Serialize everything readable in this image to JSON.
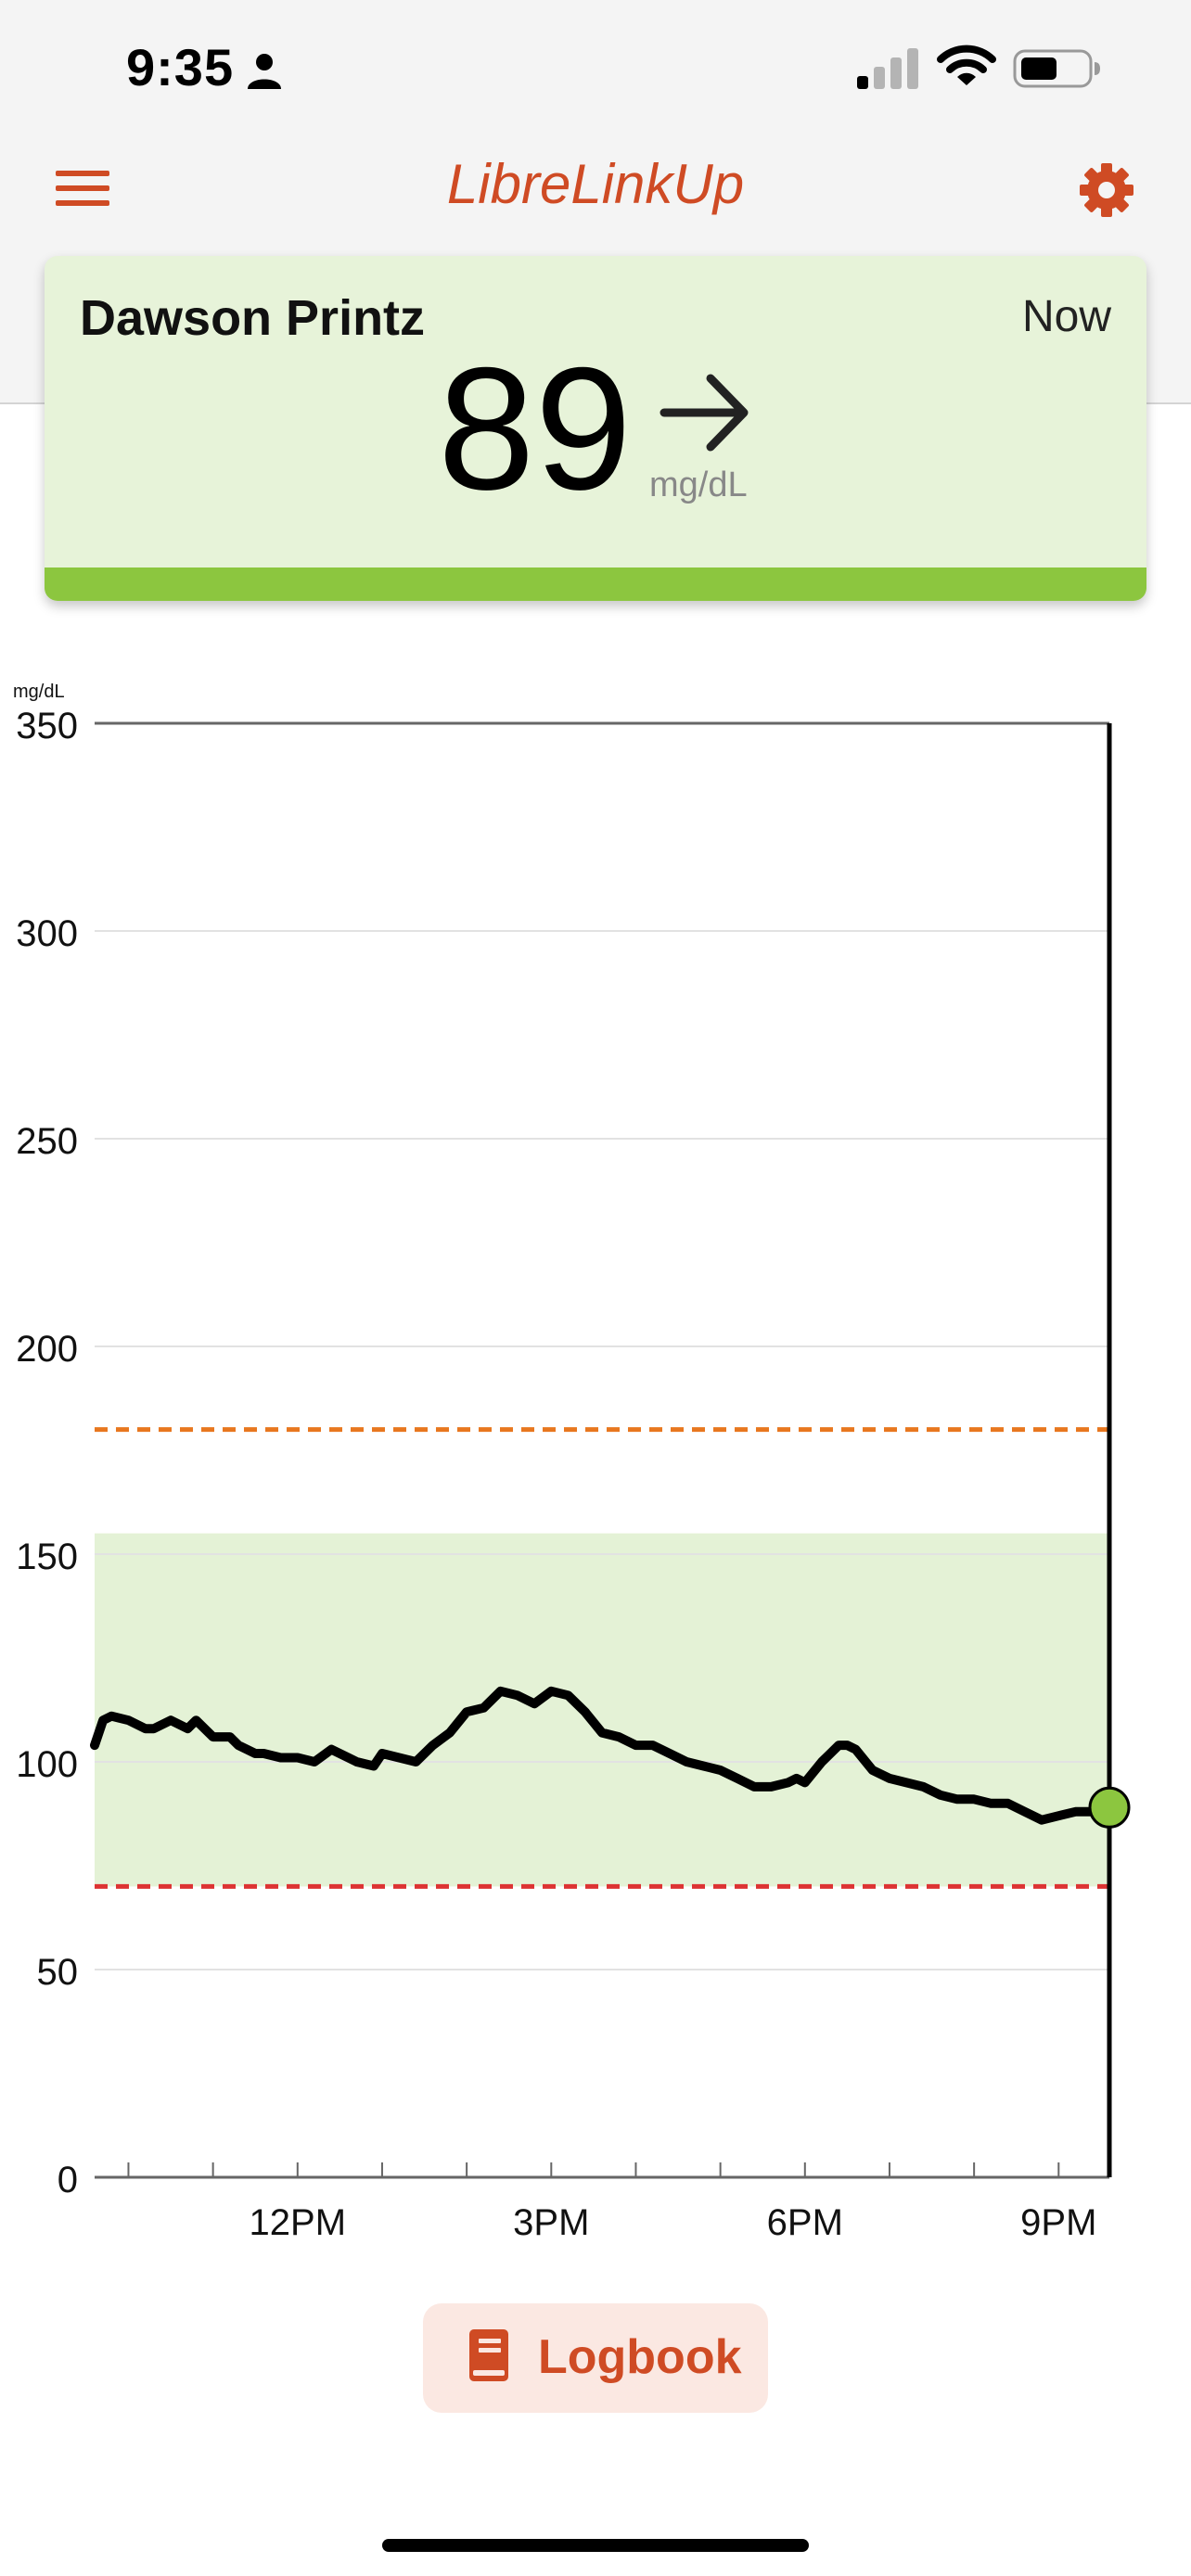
{
  "status_bar": {
    "time": "9:35",
    "icons": [
      "person-icon",
      "cellular-signal-icon",
      "wifi-icon",
      "battery-icon"
    ]
  },
  "header": {
    "title": "LibreLinkUp",
    "menu_icon": "hamburger-menu-icon",
    "settings_icon": "gear-icon"
  },
  "patient_card": {
    "name": "Dawson Printz",
    "time_label": "Now",
    "value": "89",
    "unit": "mg/dL",
    "trend_icon": "arrow-right-icon",
    "status_color": "#8cc63f"
  },
  "chart_data": {
    "type": "line",
    "ylabel": "mg/dL",
    "yticks": [
      "350",
      "300",
      "250",
      "200",
      "150",
      "100",
      "50",
      "0"
    ],
    "ylim": [
      0,
      350
    ],
    "xlim": [
      9.6,
      21.6
    ],
    "xticks": [
      {
        "label": "12PM",
        "hour": 12
      },
      {
        "label": "3PM",
        "hour": 15
      },
      {
        "label": "6PM",
        "hour": 18
      },
      {
        "label": "9PM",
        "hour": 21
      }
    ],
    "target_range": [
      70,
      155
    ],
    "high_threshold": 180,
    "low_threshold": 70,
    "current_value": 89,
    "colors": {
      "line": "#000000",
      "target_fill": "#e4f2d6",
      "high_line": "#e8771f",
      "low_line": "#dd3333",
      "current_marker": "#8cc63f"
    },
    "series": [
      {
        "x": [
          9.6,
          9.7,
          9.8,
          10.0,
          10.2,
          10.3,
          10.5,
          10.7,
          10.8,
          11.0,
          11.2,
          11.3,
          11.5,
          11.6,
          11.8,
          12.0,
          12.2,
          12.4,
          12.6,
          12.7,
          12.9,
          13.0,
          13.2,
          13.4,
          13.6,
          13.8,
          14.0,
          14.2,
          14.4,
          14.6,
          14.8,
          15.0,
          15.2,
          15.4,
          15.6,
          15.8,
          16.0,
          16.2,
          16.4,
          16.6,
          16.8,
          17.0,
          17.2,
          17.4,
          17.6,
          17.8,
          17.9,
          18.0,
          18.2,
          18.4,
          18.5,
          18.6,
          18.8,
          19.0,
          19.2,
          19.4,
          19.6,
          19.8,
          20.0,
          20.2,
          20.4,
          20.6,
          20.8,
          21.0,
          21.2,
          21.4,
          21.6
        ],
        "y": [
          104,
          110,
          111,
          110,
          108,
          108,
          110,
          108,
          110,
          106,
          106,
          104,
          102,
          102,
          101,
          101,
          100,
          103,
          101,
          100,
          99,
          102,
          101,
          100,
          104,
          107,
          112,
          113,
          117,
          116,
          114,
          117,
          116,
          112,
          107,
          106,
          104,
          104,
          102,
          100,
          99,
          98,
          96,
          94,
          94,
          95,
          96,
          95,
          100,
          104,
          104,
          103,
          98,
          96,
          95,
          94,
          92,
          91,
          91,
          90,
          90,
          88,
          86,
          87,
          88,
          88,
          89
        ]
      }
    ]
  },
  "logbook": {
    "label": "Logbook",
    "icon": "book-icon"
  }
}
